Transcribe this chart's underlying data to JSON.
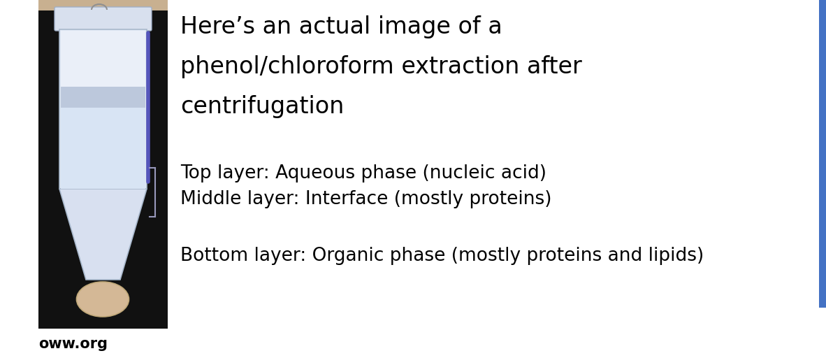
{
  "title_line1": "Here’s an actual image of a",
  "title_line2": "phenol/chloroform extraction after",
  "title_line3": "centrifugation",
  "text_line1": "Top layer: Aqueous phase (nucleic acid)",
  "text_line2": "Middle layer: Interface (mostly proteins)",
  "text_line3": "Bottom layer: Organic phase (mostly proteins and lipids)",
  "source_text": "oww.org",
  "bg_color": "#ffffff",
  "title_fontsize": 24,
  "body_fontsize": 19,
  "source_fontsize": 15,
  "accent_color": "#4472C4",
  "text_color": "#000000",
  "img_bg_color": "#111111",
  "tube_body_color": "#dce4f0",
  "tube_edge_color": "#b0bcd0",
  "layer1_color": "#e8eef8",
  "layer2_color": "#c8d0e0",
  "layer3_color": "#dce4f0",
  "plug_color": "#d4b896",
  "blue_line_color": "#5555bb",
  "bracket_color": "#9999bb"
}
